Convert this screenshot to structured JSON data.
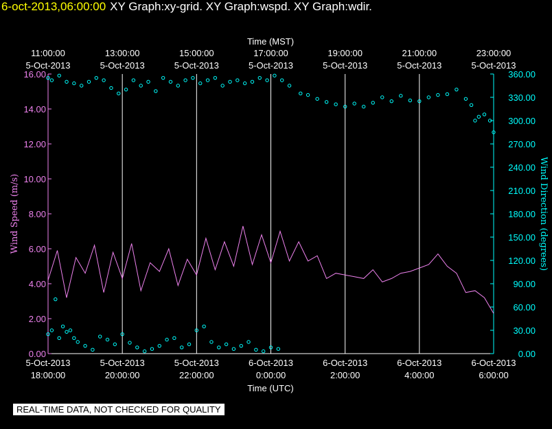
{
  "header": {
    "timestamp": "6-oct-2013,06:00:00",
    "title": "XY Graph:xy-grid.  XY Graph:wspd.  XY Graph:wdir."
  },
  "footer": {
    "note": "REAL-TIME DATA, NOT CHECKED FOR QUALITY"
  },
  "colors": {
    "background": "#000000",
    "grid": "#ffffff",
    "wind_speed": "#ee82ee",
    "wind_direction": "#00ffff",
    "timestamp": "#ffff00"
  },
  "chart_data": {
    "type": "line",
    "x_top_label": "Time (MST)",
    "x_bottom_label": "Time (UTC)",
    "x_range_utc_hours": [
      18,
      30
    ],
    "top_ticks": [
      {
        "t": 11,
        "time": "11:00:00",
        "date": "5-Oct-2013"
      },
      {
        "t": 13,
        "time": "13:00:00",
        "date": "5-Oct-2013"
      },
      {
        "t": 15,
        "time": "15:00:00",
        "date": "5-Oct-2013"
      },
      {
        "t": 17,
        "time": "17:00:00",
        "date": "5-Oct-2013"
      },
      {
        "t": 19,
        "time": "19:00:00",
        "date": "5-Oct-2013"
      },
      {
        "t": 21,
        "time": "21:00:00",
        "date": "5-Oct-2013"
      },
      {
        "t": 23,
        "time": "23:00:00",
        "date": "5-Oct-2013"
      }
    ],
    "bottom_ticks": [
      {
        "t": 18,
        "date": "5-Oct-2013",
        "time": "18:00:00"
      },
      {
        "t": 20,
        "date": "5-Oct-2013",
        "time": "20:00:00"
      },
      {
        "t": 22,
        "date": "5-Oct-2013",
        "time": "22:00:00"
      },
      {
        "t": 24,
        "date": "6-Oct-2013",
        "time": "0:00:00"
      },
      {
        "t": 26,
        "date": "6-Oct-2013",
        "time": "2:00:00"
      },
      {
        "t": 28,
        "date": "6-Oct-2013",
        "time": "4:00:00"
      },
      {
        "t": 30,
        "date": "6-Oct-2013",
        "time": "6:00:00"
      }
    ],
    "y_left": {
      "label": "Wind Speed (m/s)",
      "range": [
        0,
        16
      ],
      "ticks": [
        "0.00",
        "2.00",
        "4.00",
        "6.00",
        "8.00",
        "10.00",
        "12.00",
        "14.00",
        "16.00"
      ]
    },
    "y_right": {
      "label": "Wind Direction (degrees)",
      "range": [
        0,
        360
      ],
      "ticks": [
        "0.00",
        "30.00",
        "60.00",
        "90.00",
        "120.00",
        "150.00",
        "180.00",
        "210.00",
        "240.00",
        "270.00",
        "300.00",
        "330.00",
        "360.00"
      ]
    },
    "grid": "vertical lines at bottom ticks",
    "series": [
      {
        "name": "wspd",
        "axis": "left",
        "style": "line",
        "x_utc_hours": [
          18.0,
          18.25,
          18.5,
          18.75,
          19.0,
          19.25,
          19.5,
          19.75,
          20.0,
          20.25,
          20.5,
          20.75,
          21.0,
          21.25,
          21.5,
          21.75,
          22.0,
          22.25,
          22.5,
          22.75,
          23.0,
          23.25,
          23.5,
          23.75,
          24.0,
          24.25,
          24.5,
          24.75,
          25.0,
          25.25,
          25.5,
          25.75,
          26.0,
          26.25,
          26.5,
          26.75,
          27.0,
          27.25,
          27.5,
          27.75,
          28.0,
          28.25,
          28.5,
          28.75,
          29.0,
          29.25,
          29.5,
          29.75,
          30.0
        ],
        "values": [
          4.2,
          5.9,
          3.2,
          5.5,
          4.6,
          6.2,
          3.5,
          5.8,
          4.3,
          6.3,
          3.6,
          5.2,
          4.7,
          6.0,
          3.9,
          5.4,
          4.5,
          6.6,
          4.8,
          6.4,
          5.0,
          7.3,
          5.1,
          6.8,
          5.2,
          7.0,
          5.3,
          6.4,
          5.3,
          5.6,
          4.3,
          4.6,
          4.5,
          4.4,
          4.3,
          4.8,
          4.1,
          4.3,
          4.6,
          4.7,
          4.9,
          5.1,
          5.7,
          5.0,
          4.6,
          3.5,
          3.6,
          3.2,
          2.3
        ]
      },
      {
        "name": "wdir",
        "axis": "right",
        "style": "points",
        "x_utc_hours": [
          18.0,
          18.1,
          18.2,
          18.3,
          18.4,
          18.5,
          18.6,
          18.7,
          18.8,
          19.0,
          19.2,
          19.4,
          19.6,
          19.8,
          20.0,
          20.2,
          20.4,
          20.6,
          20.8,
          21.0,
          21.2,
          21.4,
          21.6,
          21.8,
          22.0,
          22.2,
          22.4,
          22.6,
          22.8,
          23.0,
          23.2,
          23.4,
          23.6,
          23.8,
          24.0,
          24.2,
          18.0,
          18.1,
          18.3,
          18.5,
          18.7,
          18.9,
          19.1,
          19.3,
          19.5,
          19.7,
          19.9,
          20.1,
          20.3,
          20.5,
          20.7,
          20.9,
          21.1,
          21.3,
          21.5,
          21.7,
          21.9,
          22.1,
          22.3,
          22.5,
          22.7,
          22.9,
          23.1,
          23.3,
          23.5,
          23.7,
          23.9,
          24.1,
          24.3,
          24.5,
          24.8,
          25.0,
          25.25,
          25.5,
          25.75,
          26.0,
          26.25,
          26.5,
          26.75,
          27.0,
          27.25,
          27.5,
          27.75,
          28.0,
          28.25,
          28.5,
          28.75,
          29.0,
          29.25,
          29.4,
          29.5,
          29.6,
          29.75,
          29.9,
          30.0
        ],
        "values": [
          25,
          30,
          70,
          20,
          35,
          28,
          30,
          20,
          15,
          10,
          5,
          22,
          18,
          12,
          25,
          14,
          8,
          3,
          6,
          10,
          18,
          20,
          8,
          12,
          30,
          35,
          15,
          8,
          12,
          6,
          10,
          15,
          5,
          3,
          8,
          6,
          355,
          352,
          358,
          350,
          348,
          345,
          350,
          355,
          352,
          342,
          335,
          340,
          352,
          345,
          350,
          338,
          355,
          350,
          345,
          352,
          355,
          348,
          352,
          355,
          345,
          350,
          352,
          348,
          350,
          355,
          352,
          358,
          352,
          345,
          335,
          333,
          328,
          324,
          321,
          318,
          322,
          318,
          323,
          330,
          325,
          332,
          326,
          325,
          330,
          333,
          334,
          340,
          328,
          320,
          300,
          305,
          308,
          300,
          285
        ]
      }
    ]
  }
}
